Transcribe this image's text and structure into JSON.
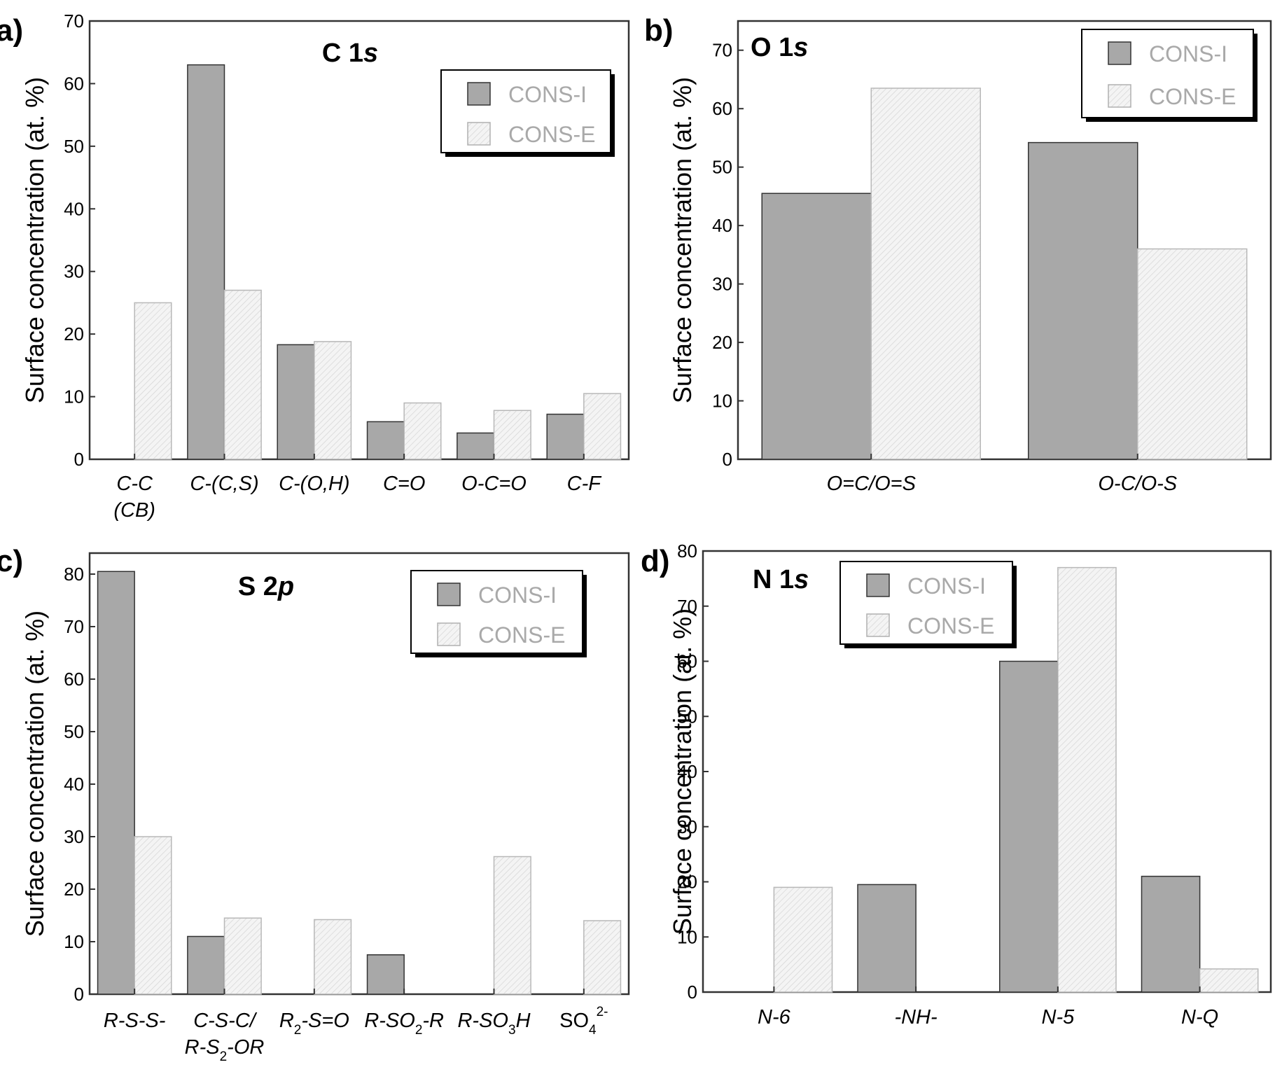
{
  "colors": {
    "cons_i": "#a8a8a8",
    "cons_e": "#f4f4f4",
    "edge": "#333333"
  },
  "chart_data": [
    {
      "type": "bar",
      "panel_label": "a)",
      "title": "C 1s",
      "ylabel": "Surface concentration  (at. %)",
      "ylim": [
        0,
        70
      ],
      "yticks": [
        0,
        10,
        20,
        30,
        40,
        50,
        60,
        70
      ],
      "categories": [
        "C-C (CB)",
        "C-(C,S)",
        "C-(O,H)",
        "C=O",
        "O-C=O",
        "C-F"
      ],
      "series": [
        {
          "name": "CONS-I",
          "values": [
            0,
            63,
            18.3,
            6,
            4.2,
            7.2
          ]
        },
        {
          "name": "CONS-E",
          "values": [
            25,
            27,
            18.8,
            9,
            7.8,
            10.5
          ]
        }
      ],
      "legend": "top-right"
    },
    {
      "type": "bar",
      "panel_label": "b)",
      "title": "O 1s",
      "ylabel": "Surface concentration  (at. %)",
      "ylim": [
        0,
        75
      ],
      "yticks": [
        0,
        10,
        20,
        30,
        40,
        50,
        60,
        70
      ],
      "categories": [
        "O=C/O=S",
        "O-C/O-S"
      ],
      "series": [
        {
          "name": "CONS-I",
          "values": [
            45.5,
            54.2
          ]
        },
        {
          "name": "CONS-E",
          "values": [
            63.5,
            36
          ]
        }
      ],
      "legend": "top-right"
    },
    {
      "type": "bar",
      "panel_label": "c)",
      "title": "S 2p",
      "ylabel": "Surface concentration  (at. %)",
      "ylim": [
        0,
        84
      ],
      "yticks": [
        0,
        10,
        20,
        30,
        40,
        50,
        60,
        70,
        80
      ],
      "categories": [
        "R-S-S-",
        "C-S-C/ R-S2-OR",
        "R2-S=O",
        "R-SO2-R",
        "R-SO3H",
        "SO4 2-"
      ],
      "series": [
        {
          "name": "CONS-I",
          "values": [
            80.5,
            11,
            0,
            7.5,
            0,
            0
          ]
        },
        {
          "name": "CONS-E",
          "values": [
            30,
            14.5,
            14.2,
            0,
            26.2,
            14
          ]
        }
      ],
      "legend": "top-right"
    },
    {
      "type": "bar",
      "panel_label": "d)",
      "title": "N 1s",
      "ylabel": "Surface concentration  (at. %)",
      "ylim": [
        0,
        80
      ],
      "yticks": [
        0,
        10,
        20,
        30,
        40,
        50,
        60,
        70,
        80
      ],
      "categories": [
        "N-6",
        "-NH-",
        "N-5",
        "N-Q"
      ],
      "series": [
        {
          "name": "CONS-I",
          "values": [
            0,
            19.5,
            60,
            21
          ]
        },
        {
          "name": "CONS-E",
          "values": [
            19,
            0,
            77,
            4.2
          ]
        }
      ],
      "legend": "top-left"
    }
  ]
}
